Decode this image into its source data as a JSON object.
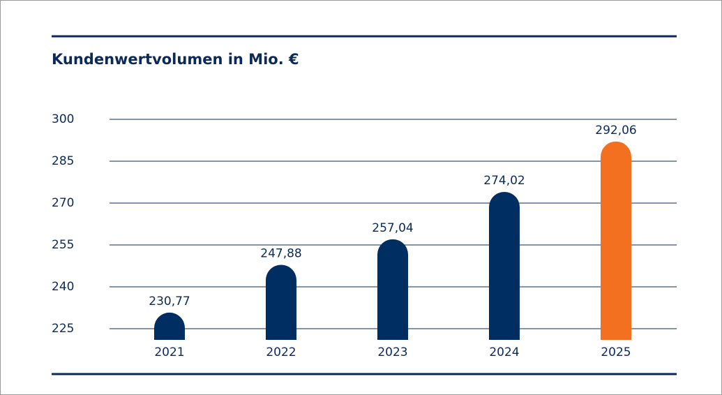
{
  "chart_data": {
    "type": "bar",
    "title": "Kundenwertvolumen in Mio. €",
    "categories": [
      "2021",
      "2022",
      "2023",
      "2024",
      "2025"
    ],
    "values": [
      230.77,
      247.88,
      257.04,
      274.02,
      292.06
    ],
    "value_labels": [
      "230,77",
      "247,88",
      "257,04",
      "274,02",
      "292,06"
    ],
    "colors": [
      "#002d62",
      "#002d62",
      "#002d62",
      "#002d62",
      "#f37021"
    ],
    "ylim": [
      221,
      300
    ],
    "yticks": [
      225,
      240,
      255,
      270,
      285,
      300
    ],
    "grid": true
  }
}
